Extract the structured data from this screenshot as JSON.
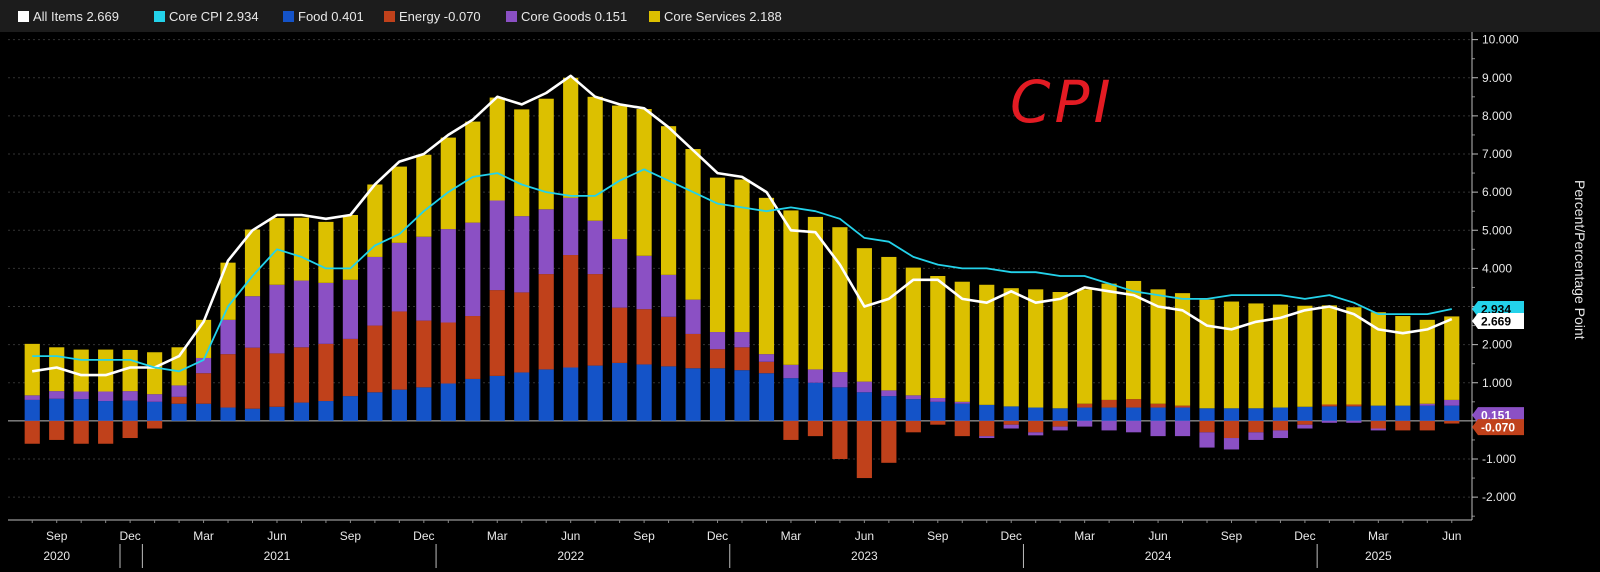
{
  "legend": [
    {
      "label": "All Items 2.669",
      "color": "#ffffff"
    },
    {
      "label": "Core CPI 2.934",
      "color": "#23d2ea"
    },
    {
      "label": "Food 0.401",
      "color": "#1453c8"
    },
    {
      "label": "Energy -0.070",
      "color": "#c0411b"
    },
    {
      "label": "Core Goods 0.151",
      "color": "#8b50c4"
    },
    {
      "label": "Core Services 2.188",
      "color": "#dcc000"
    }
  ],
  "annotation": "CPI",
  "y_axis_label": "Percent/Percentage Point",
  "end_labels": [
    {
      "text": "2.934",
      "value": 2.934,
      "color": "#23d2ea",
      "text_color": "#000000"
    },
    {
      "text": "2.669",
      "value": 2.669,
      "color": "#ffffff",
      "text_color": "#000000"
    },
    {
      "text": "0.151",
      "value": 0.151,
      "color": "#8b50c4",
      "text_color": "#ffffff"
    },
    {
      "text": "-0.070",
      "value": -0.07,
      "color": "#c0411b",
      "text_color": "#ffffff"
    }
  ],
  "chart_data": {
    "type": "bar",
    "stacked": true,
    "x": [
      "2020-08",
      "2020-09",
      "2020-10",
      "2020-11",
      "2020-12",
      "2021-01",
      "2021-02",
      "2021-03",
      "2021-04",
      "2021-05",
      "2021-06",
      "2021-07",
      "2021-08",
      "2021-09",
      "2021-10",
      "2021-11",
      "2021-12",
      "2022-01",
      "2022-02",
      "2022-03",
      "2022-04",
      "2022-05",
      "2022-06",
      "2022-07",
      "2022-08",
      "2022-09",
      "2022-10",
      "2022-11",
      "2022-12",
      "2023-01",
      "2023-02",
      "2023-03",
      "2023-04",
      "2023-05",
      "2023-06",
      "2023-07",
      "2023-08",
      "2023-09",
      "2023-10",
      "2023-11",
      "2023-12",
      "2024-01",
      "2024-02",
      "2024-03",
      "2024-04",
      "2024-05",
      "2024-06",
      "2024-07",
      "2024-08",
      "2024-09",
      "2024-10",
      "2024-11",
      "2024-12",
      "2025-01",
      "2025-02",
      "2025-03",
      "2025-04",
      "2025-05",
      "2025-06"
    ],
    "ylim": [
      -2.6,
      10.2
    ],
    "y_ticks": [
      -2,
      -1,
      0,
      1,
      2,
      3,
      4,
      5,
      6,
      7,
      8,
      9,
      10
    ],
    "y_tick_labels": [
      "-2.000",
      "-1.000",
      "",
      "1.000",
      "2.000",
      "3.000",
      "4.000",
      "5.000",
      "6.000",
      "7.000",
      "8.000",
      "9.000",
      "10.000"
    ],
    "ylabel": "Percent/Percentage Point",
    "x_month_labels": [
      {
        "date": "2020-09",
        "label": "Sep"
      },
      {
        "date": "2020-12",
        "label": "Dec"
      },
      {
        "date": "2021-03",
        "label": "Mar"
      },
      {
        "date": "2021-06",
        "label": "Jun"
      },
      {
        "date": "2021-09",
        "label": "Sep"
      },
      {
        "date": "2021-12",
        "label": "Dec"
      },
      {
        "date": "2022-03",
        "label": "Mar"
      },
      {
        "date": "2022-06",
        "label": "Jun"
      },
      {
        "date": "2022-09",
        "label": "Sep"
      },
      {
        "date": "2022-12",
        "label": "Dec"
      },
      {
        "date": "2023-03",
        "label": "Mar"
      },
      {
        "date": "2023-06",
        "label": "Jun"
      },
      {
        "date": "2023-09",
        "label": "Sep"
      },
      {
        "date": "2023-12",
        "label": "Dec"
      },
      {
        "date": "2024-03",
        "label": "Mar"
      },
      {
        "date": "2024-06",
        "label": "Jun"
      },
      {
        "date": "2024-09",
        "label": "Sep"
      },
      {
        "date": "2024-12",
        "label": "Dec"
      },
      {
        "date": "2025-03",
        "label": "Mar"
      },
      {
        "date": "2025-06",
        "label": "Jun"
      }
    ],
    "x_year_labels": [
      {
        "date": "2020-09",
        "label": "2020"
      },
      {
        "date": "2021-06",
        "label": "2021"
      },
      {
        "date": "2022-06",
        "label": "2022"
      },
      {
        "date": "2023-06",
        "label": "2023"
      },
      {
        "date": "2024-06",
        "label": "2024"
      },
      {
        "date": "2025-03",
        "label": "2025"
      }
    ],
    "series": [
      {
        "name": "Food",
        "kind": "bar",
        "color": "#1453c8",
        "values": [
          0.55,
          0.58,
          0.57,
          0.52,
          0.53,
          0.5,
          0.45,
          0.45,
          0.35,
          0.32,
          0.37,
          0.48,
          0.52,
          0.65,
          0.75,
          0.82,
          0.88,
          0.98,
          1.1,
          1.18,
          1.27,
          1.35,
          1.4,
          1.45,
          1.52,
          1.48,
          1.43,
          1.38,
          1.38,
          1.33,
          1.25,
          1.12,
          1.0,
          0.88,
          0.75,
          0.65,
          0.57,
          0.5,
          0.45,
          0.42,
          0.38,
          0.35,
          0.33,
          0.35,
          0.35,
          0.35,
          0.35,
          0.35,
          0.33,
          0.33,
          0.33,
          0.35,
          0.37,
          0.38,
          0.38,
          0.4,
          0.4,
          0.4,
          0.4
        ]
      },
      {
        "name": "Energy",
        "kind": "bar",
        "color": "#c0411b",
        "values": [
          -0.6,
          -0.5,
          -0.6,
          -0.6,
          -0.45,
          -0.2,
          0.18,
          0.8,
          1.4,
          1.6,
          1.4,
          1.45,
          1.5,
          1.5,
          1.75,
          2.05,
          1.75,
          1.6,
          1.65,
          2.25,
          2.1,
          2.5,
          2.95,
          2.4,
          1.45,
          1.45,
          1.3,
          0.9,
          0.5,
          0.6,
          0.3,
          -0.5,
          -0.4,
          -1.0,
          -1.5,
          -1.1,
          -0.3,
          -0.1,
          -0.4,
          -0.4,
          -0.1,
          -0.3,
          -0.15,
          0.1,
          0.2,
          0.22,
          0.1,
          0.05,
          -0.3,
          -0.45,
          -0.3,
          -0.25,
          -0.1,
          0.05,
          0.05,
          -0.2,
          -0.25,
          -0.25,
          -0.07
        ]
      },
      {
        "name": "Core Goods",
        "kind": "bar",
        "color": "#8b50c4",
        "values": [
          0.12,
          0.2,
          0.2,
          0.25,
          0.25,
          0.2,
          0.3,
          0.4,
          0.9,
          1.35,
          1.8,
          1.75,
          1.6,
          1.55,
          1.8,
          1.8,
          2.2,
          2.45,
          2.45,
          2.35,
          2.0,
          1.7,
          1.5,
          1.4,
          1.8,
          1.4,
          1.1,
          0.9,
          0.45,
          0.4,
          0.2,
          0.35,
          0.35,
          0.4,
          0.28,
          0.15,
          0.1,
          0.1,
          0.05,
          -0.05,
          -0.1,
          -0.08,
          -0.1,
          -0.15,
          -0.25,
          -0.3,
          -0.4,
          -0.4,
          -0.4,
          -0.3,
          -0.2,
          -0.2,
          -0.1,
          -0.05,
          -0.05,
          -0.05,
          0.0,
          0.05,
          0.15
        ]
      },
      {
        "name": "Core Services",
        "kind": "bar",
        "color": "#dcc000",
        "values": [
          1.35,
          1.15,
          1.1,
          1.1,
          1.08,
          1.1,
          1.0,
          1.0,
          1.5,
          1.75,
          1.75,
          1.65,
          1.6,
          1.7,
          1.9,
          2.0,
          2.15,
          2.4,
          2.65,
          2.7,
          2.8,
          2.9,
          3.15,
          3.25,
          3.5,
          3.85,
          3.9,
          3.95,
          4.05,
          4.0,
          4.1,
          4.05,
          4.0,
          3.8,
          3.5,
          3.5,
          3.35,
          3.2,
          3.15,
          3.15,
          3.1,
          3.1,
          3.05,
          3.0,
          3.05,
          3.1,
          3.0,
          2.95,
          2.85,
          2.8,
          2.75,
          2.7,
          2.65,
          2.6,
          2.55,
          2.45,
          2.35,
          2.2,
          2.19
        ]
      },
      {
        "name": "All Items",
        "kind": "line",
        "color": "#ffffff",
        "values": [
          1.3,
          1.4,
          1.2,
          1.2,
          1.4,
          1.4,
          1.7,
          2.6,
          4.2,
          5.0,
          5.4,
          5.4,
          5.3,
          5.4,
          6.2,
          6.8,
          7.0,
          7.5,
          7.9,
          8.5,
          8.3,
          8.6,
          9.05,
          8.5,
          8.3,
          8.2,
          7.7,
          7.1,
          6.5,
          6.4,
          6.0,
          5.0,
          4.95,
          4.1,
          3.0,
          3.2,
          3.7,
          3.7,
          3.2,
          3.1,
          3.4,
          3.1,
          3.2,
          3.5,
          3.4,
          3.3,
          3.0,
          2.9,
          2.5,
          2.4,
          2.6,
          2.7,
          2.9,
          3.0,
          2.8,
          2.4,
          2.3,
          2.4,
          2.669
        ]
      },
      {
        "name": "Core CPI",
        "kind": "line",
        "color": "#23d2ea",
        "values": [
          1.7,
          1.7,
          1.6,
          1.6,
          1.6,
          1.4,
          1.3,
          1.6,
          3.0,
          3.8,
          4.5,
          4.3,
          4.0,
          4.0,
          4.6,
          4.9,
          5.5,
          6.0,
          6.4,
          6.5,
          6.2,
          6.0,
          5.9,
          5.9,
          6.3,
          6.6,
          6.3,
          6.0,
          5.7,
          5.6,
          5.5,
          5.6,
          5.5,
          5.3,
          4.8,
          4.7,
          4.3,
          4.1,
          4.0,
          4.0,
          3.9,
          3.9,
          3.8,
          3.8,
          3.6,
          3.4,
          3.3,
          3.2,
          3.2,
          3.3,
          3.3,
          3.3,
          3.2,
          3.3,
          3.1,
          2.8,
          2.8,
          2.8,
          2.934
        ]
      }
    ]
  }
}
